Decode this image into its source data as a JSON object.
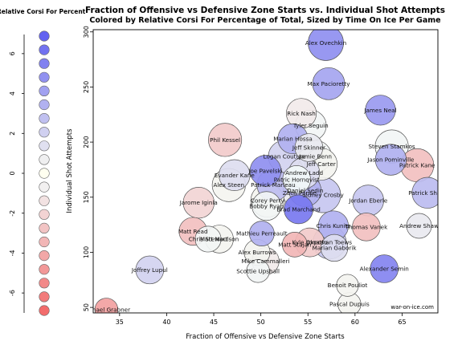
{
  "chart_data": {
    "type": "scatter",
    "title": "Fraction of Offensive vs Defensive Zone Starts vs. Individual Shot Attempts",
    "subtitle": "Colored by Relative Corsi For Percentage of Total, Sized by Time On Ice Per Game",
    "xlabel": "Fraction of Offensive vs Defensive Zone Starts",
    "ylabel": "Individual Shot Attempts",
    "xlim": [
      32.2,
      68.8
    ],
    "ylim": [
      45,
      302
    ],
    "xticks": [
      35,
      40,
      45,
      50,
      55,
      60,
      65
    ],
    "yticks": [
      50,
      100,
      150,
      200,
      250,
      300
    ],
    "grid": false,
    "watermark": "war-on-ice.com",
    "colorbar": {
      "label": "Relative Corsi For Percent",
      "ticks": [
        6,
        4,
        2,
        0,
        -2,
        -4,
        -6
      ],
      "range": [
        -7,
        7
      ],
      "swatches": [
        7,
        6.3,
        5.6,
        4.9,
        4.2,
        3.5,
        2.8,
        2.1,
        1.4,
        0.7,
        0,
        -0.7,
        -1.4,
        -2.1,
        -2.8,
        -3.5,
        -4.2,
        -4.9,
        -5.6,
        -6.3,
        -7
      ]
    },
    "points": [
      {
        "name": "Alex Ovechkin",
        "x": 56.9,
        "y": 290,
        "corsi_rel": 5,
        "toi": 20.5
      },
      {
        "name": "Max Pacioretty",
        "x": 57.2,
        "y": 253,
        "corsi_rel": 4,
        "toi": 19
      },
      {
        "name": "James Neal",
        "x": 62.7,
        "y": 229,
        "corsi_rel": 4.5,
        "toi": 18
      },
      {
        "name": "Rick Nash",
        "x": 54.3,
        "y": 226,
        "corsi_rel": -1,
        "toi": 18
      },
      {
        "name": "Tyler Seguin",
        "x": 55.3,
        "y": 215,
        "corsi_rel": -0.5,
        "toi": 18.5
      },
      {
        "name": "Phil Kessel",
        "x": 46.2,
        "y": 202,
        "corsi_rel": -2.5,
        "toi": 19.5
      },
      {
        "name": "Marian Hossa",
        "x": 53.4,
        "y": 203,
        "corsi_rel": 3.5,
        "toi": 18
      },
      {
        "name": "Jeff Skinner",
        "x": 55.1,
        "y": 195,
        "corsi_rel": 1,
        "toi": 17
      },
      {
        "name": "Steven Stamkos",
        "x": 63.9,
        "y": 196,
        "corsi_rel": -0.5,
        "toi": 19.5
      },
      {
        "name": "Logan Couture",
        "x": 52.5,
        "y": 187,
        "corsi_rel": 2,
        "toi": 19
      },
      {
        "name": "Jamie Benn",
        "x": 55.8,
        "y": 187,
        "corsi_rel": -0.5,
        "toi": 19
      },
      {
        "name": "Jason Pominville",
        "x": 63.8,
        "y": 184,
        "corsi_rel": 3.5,
        "toi": 18.5
      },
      {
        "name": "Jeff Carter",
        "x": 56.4,
        "y": 180,
        "corsi_rel": 0.5,
        "toi": 19
      },
      {
        "name": "Patrick Kane",
        "x": 66.6,
        "y": 179,
        "corsi_rel": -3,
        "toi": 19.5
      },
      {
        "name": "Joe Pavelski",
        "x": 50.5,
        "y": 174,
        "corsi_rel": 5,
        "toi": 18.5
      },
      {
        "name": "Evander Kane",
        "x": 47.2,
        "y": 170,
        "corsi_rel": 1.5,
        "toi": 18.5
      },
      {
        "name": "Andrew Ladd",
        "x": 54.6,
        "y": 172,
        "corsi_rel": 1.5,
        "toi": 18.5
      },
      {
        "name": "Patrick Sharp",
        "x": 67.7,
        "y": 154,
        "corsi_rel": 3,
        "toi": 18.5
      },
      {
        "name": "Patric Hornqvist",
        "x": 53.8,
        "y": 166,
        "corsi_rel": -0.3,
        "toi": 17
      },
      {
        "name": "Alex Steen",
        "x": 46.6,
        "y": 161,
        "corsi_rel": 0.5,
        "toi": 19.5
      },
      {
        "name": "Patrick Marleau",
        "x": 51.3,
        "y": 161,
        "corsi_rel": 3,
        "toi": 19
      },
      {
        "name": "Daniel Sedin",
        "x": 54.7,
        "y": 156,
        "corsi_rel": 3.5,
        "toi": 19
      },
      {
        "name": "Zach Parise",
        "x": 54.1,
        "y": 154,
        "corsi_rel": 1,
        "toi": 19.5
      },
      {
        "name": "Sidney Crosby",
        "x": 56.6,
        "y": 152,
        "corsi_rel": 2.5,
        "toi": 20.5
      },
      {
        "name": "Jordan Eberle",
        "x": 61.4,
        "y": 147,
        "corsi_rel": 2.5,
        "toi": 18.5
      },
      {
        "name": "Corey Perry",
        "x": 50.7,
        "y": 147,
        "corsi_rel": 0.5,
        "toi": 19.5
      },
      {
        "name": "Jarome Iginla",
        "x": 43.4,
        "y": 145,
        "corsi_rel": -2,
        "toi": 18.5
      },
      {
        "name": "Bobby Ryan",
        "x": 50.6,
        "y": 142,
        "corsi_rel": -0.5,
        "toi": 17.5
      },
      {
        "name": "Brad Marchand",
        "x": 54,
        "y": 139,
        "corsi_rel": 6,
        "toi": 17.5
      },
      {
        "name": "Chris Kunitz",
        "x": 57.7,
        "y": 124,
        "corsi_rel": 3.5,
        "toi": 18
      },
      {
        "name": "Thomas Vanek",
        "x": 61.2,
        "y": 123,
        "corsi_rel": -3,
        "toi": 17
      },
      {
        "name": "Andrew Shaw",
        "x": 66.8,
        "y": 124,
        "corsi_rel": 1,
        "toi": 15.5
      },
      {
        "name": "Matt Read",
        "x": 42.8,
        "y": 119,
        "corsi_rel": -3,
        "toi": 17
      },
      {
        "name": "Mathieu Perreault",
        "x": 50.1,
        "y": 117,
        "corsi_rel": 3.5,
        "toi": 15.5
      },
      {
        "name": "Chris Stewart",
        "x": 44.4,
        "y": 112,
        "corsi_rel": -0.5,
        "toi": 16
      },
      {
        "name": "Matt Moulson",
        "x": 45.6,
        "y": 112,
        "corsi_rel": 0.5,
        "toi": 17
      },
      {
        "name": "Kyle Okposo",
        "x": 55.2,
        "y": 109,
        "corsi_rel": -2.5,
        "toi": 17.5
      },
      {
        "name": "Matt Stajan",
        "x": 53.6,
        "y": 107,
        "corsi_rel": -3.5,
        "toi": 15.5
      },
      {
        "name": "Jonathan Toews",
        "x": 57.3,
        "y": 109,
        "corsi_rel": 2.5,
        "toi": 19.5
      },
      {
        "name": "Marian Gaborik",
        "x": 57.8,
        "y": 104,
        "corsi_rel": 1.5,
        "toi": 16.5
      },
      {
        "name": "Alex Burrows",
        "x": 49.6,
        "y": 100,
        "corsi_rel": 0.5,
        "toi": 16
      },
      {
        "name": "Mike Cammalleri",
        "x": 50.5,
        "y": 92,
        "corsi_rel": -1,
        "toi": 16.5
      },
      {
        "name": "Joffrey Lupul",
        "x": 38.2,
        "y": 84,
        "corsi_rel": 2,
        "toi": 17
      },
      {
        "name": "Alexander Semin",
        "x": 63.1,
        "y": 85,
        "corsi_rel": 5.5,
        "toi": 17
      },
      {
        "name": "Scottie Upshall",
        "x": 49.7,
        "y": 83,
        "corsi_rel": -0.5,
        "toi": 14.5
      },
      {
        "name": "Benoit Pouliot",
        "x": 59.2,
        "y": 70,
        "corsi_rel": 0.5,
        "toi": 14
      },
      {
        "name": "Pascal Dupuis",
        "x": 59.4,
        "y": 53,
        "corsi_rel": 0.5,
        "toi": 14.5
      },
      {
        "name": "Michael Grabner",
        "x": 33.6,
        "y": 48,
        "corsi_rel": -4.5,
        "toi": 14.5
      }
    ]
  }
}
